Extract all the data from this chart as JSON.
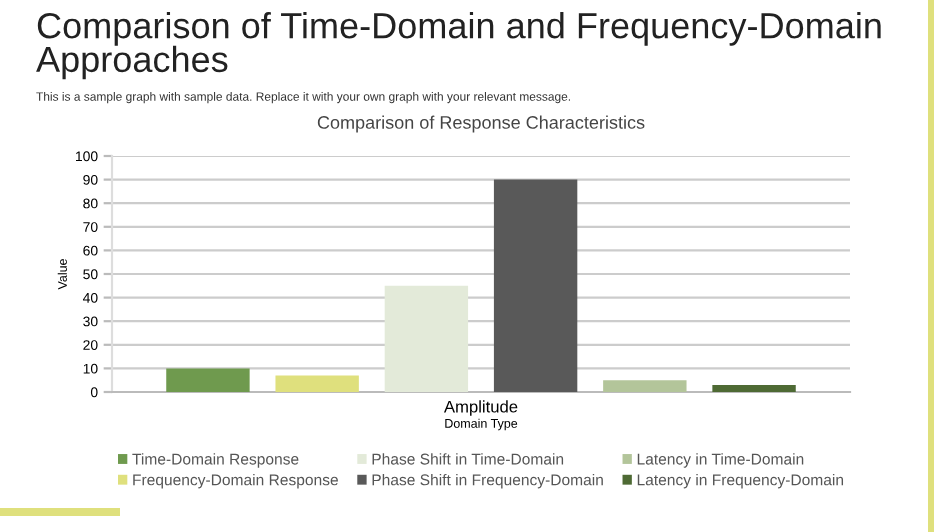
{
  "chart_data": {
    "type": "bar",
    "title": "Comparison of Time-Domain and Frequency-Domain Approaches",
    "subtitle": "This is a sample graph with sample data. Replace it with your own graph with your relevant message.",
    "annotations": [
      "Comparison of Response Characteristics"
    ],
    "xlabel": "Domain Type",
    "ylabel": "Value",
    "categories": [
      "Amplitude"
    ],
    "series": [
      {
        "name": "Time-Domain Response",
        "color": "#6f9a4e",
        "values": [
          10
        ]
      },
      {
        "name": "Frequency-Domain Response",
        "color": "#dfe07d",
        "values": [
          7
        ]
      },
      {
        "name": "Phase Shift in Time-Domain",
        "color": "#e3ead9",
        "values": [
          45
        ]
      },
      {
        "name": "Phase Shift in Frequency-Domain",
        "color": "#595959",
        "values": [
          90
        ]
      },
      {
        "name": "Latency in Time-Domain",
        "color": "#b3c59a",
        "values": [
          5
        ]
      },
      {
        "name": "Latency in Frequency-Domain",
        "color": "#4e6a34",
        "values": [
          3
        ]
      }
    ],
    "ylim": [
      0,
      100
    ],
    "yticks": [
      0,
      10,
      20,
      30,
      40,
      50,
      60,
      70,
      80,
      90,
      100
    ],
    "grid": "y",
    "legend": "bottom"
  }
}
